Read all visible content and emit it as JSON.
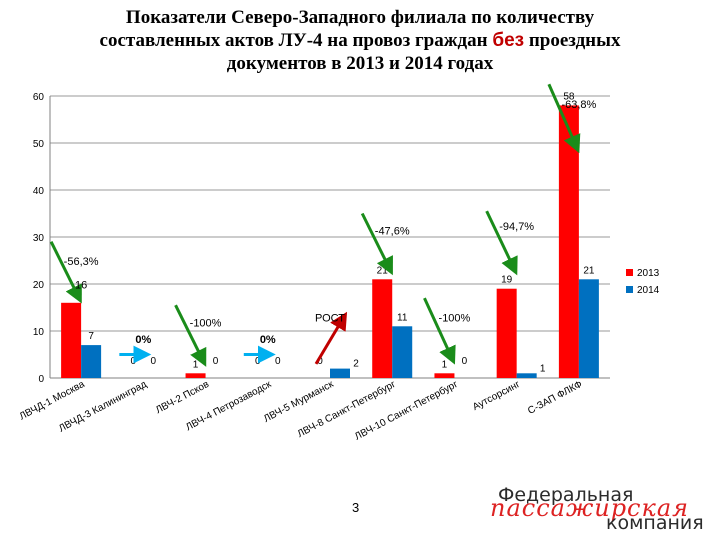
{
  "title": {
    "line1": "Показатели Северо-Западного филиала по количеству",
    "line2_before": "составленных актов ЛУ-4 на провоз граждан ",
    "line2_highlight": "без",
    "line2_after": " проездных",
    "line3": "документов в 2013 и 2014 годах"
  },
  "page_number": "3",
  "logo": {
    "line1": "Федеральная",
    "script": "пассажирская",
    "line3": "компания"
  },
  "colors": {
    "series_2013": "#ff0000",
    "series_2014": "#0070c0",
    "arrow_down": "#1a8c1a",
    "arrow_up": "#c00000",
    "arrow_flat": "#00b0f0"
  },
  "chart_data": {
    "type": "bar",
    "ylim": [
      0,
      60
    ],
    "yticks": [
      0,
      10,
      20,
      30,
      40,
      50,
      60
    ],
    "grid": true,
    "legend_position": "right",
    "categories": [
      "ЛВЧД-1 Москва",
      "ЛВЧД-3 Калининград",
      "ЛВЧ-2 Псков",
      "ЛВЧ-4 Петрозаводск",
      "ЛВЧ-5 Мурманск",
      "ЛВЧ-8 Санкт-Петербург",
      "ЛВЧ-10 Санкт-Петербург",
      "Аутсорсинг",
      "С-ЗАП ФЛКФ"
    ],
    "series": [
      {
        "name": "2013",
        "values": [
          16,
          0,
          1,
          0,
          0,
          21,
          1,
          19,
          58
        ],
        "labels": [
          "",
          "0",
          "1",
          "0",
          "0",
          "21",
          "1",
          "19",
          "58"
        ]
      },
      {
        "name": "2014",
        "values": [
          7,
          0,
          0,
          0,
          2,
          11,
          0,
          1,
          21
        ],
        "labels": [
          "7",
          "0",
          "0",
          "0",
          "2",
          "11",
          "0",
          "1",
          "21"
        ]
      }
    ],
    "annotations": [
      {
        "text": "-56,3%",
        "category": 0,
        "y": 24
      },
      {
        "text": "0%",
        "category": 1,
        "y": 7.5
      },
      {
        "text": "-100%",
        "category": 2,
        "y": 11
      },
      {
        "text": "0%",
        "category": 3,
        "y": 7.5
      },
      {
        "text": "РОСТ",
        "category": 4,
        "y": 12
      },
      {
        "text": "-47,6%",
        "category": 5,
        "y": 30.5
      },
      {
        "text": "-100%",
        "category": 6,
        "y": 12
      },
      {
        "text": "-94,7%",
        "category": 7,
        "y": 31.5
      },
      {
        "text": "-63,8%",
        "category": 8,
        "y": 57.5
      },
      {
        "text": "16",
        "category": 0,
        "y": 19
      }
    ],
    "trend_arrows": [
      {
        "category": 0,
        "direction": "down",
        "from_y": 29,
        "to_y": 17
      },
      {
        "category": 1,
        "direction": "flat",
        "y": 5
      },
      {
        "category": 2,
        "direction": "down",
        "from_y": 15.5,
        "to_y": 3.5
      },
      {
        "category": 3,
        "direction": "flat",
        "y": 5
      },
      {
        "category": 4,
        "direction": "up",
        "from_y": 3,
        "to_y": 13
      },
      {
        "category": 5,
        "direction": "down",
        "from_y": 35,
        "to_y": 23
      },
      {
        "category": 6,
        "direction": "down",
        "from_y": 17,
        "to_y": 4
      },
      {
        "category": 7,
        "direction": "down",
        "from_y": 35.5,
        "to_y": 23
      },
      {
        "category": 8,
        "direction": "down",
        "from_y": 62.5,
        "to_y": 49
      }
    ]
  }
}
